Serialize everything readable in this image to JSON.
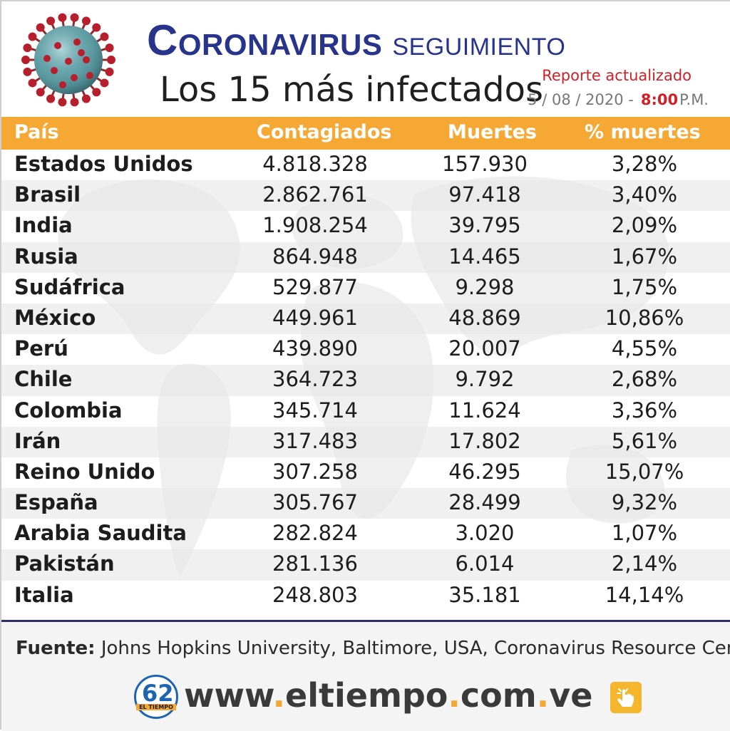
{
  "header": {
    "title_word1": "Coronavirus",
    "title_word2": "seguimiento",
    "subtitle": "Los 15 más infectados",
    "report_label": "Reporte actualizado",
    "date": "5 / 08 / 2020 -",
    "time": "8:00",
    "ampm": "P.M."
  },
  "table": {
    "headers": [
      "País",
      "Contagiados",
      "Muertes",
      "% muertes"
    ],
    "rows": [
      {
        "country": "Estados Unidos",
        "cases": "4.818.328",
        "deaths": "157.930",
        "pct": "3,28%"
      },
      {
        "country": "Brasil",
        "cases": "2.862.761",
        "deaths": "97.418",
        "pct": "3,40%"
      },
      {
        "country": "India",
        "cases": "1.908.254",
        "deaths": "39.795",
        "pct": "2,09%"
      },
      {
        "country": "Rusia",
        "cases": "864.948",
        "deaths": "14.465",
        "pct": "1,67%"
      },
      {
        "country": "Sudáfrica",
        "cases": "529.877",
        "deaths": "9.298",
        "pct": "1,75%"
      },
      {
        "country": "México",
        "cases": "449.961",
        "deaths": "48.869",
        "pct": "10,86%"
      },
      {
        "country": "Perú",
        "cases": "439.890",
        "deaths": "20.007",
        "pct": "4,55%"
      },
      {
        "country": "Chile",
        "cases": "364.723",
        "deaths": "9.792",
        "pct": "2,68%"
      },
      {
        "country": "Colombia",
        "cases": "345.714",
        "deaths": "11.624",
        "pct": "3,36%"
      },
      {
        "country": "Irán",
        "cases": "317.483",
        "deaths": "17.802",
        "pct": "5,61%"
      },
      {
        "country": "Reino Unido",
        "cases": "307.258",
        "deaths": "46.295",
        "pct": "15,07%"
      },
      {
        "country": "España",
        "cases": "305.767",
        "deaths": "28.499",
        "pct": "9,32%"
      },
      {
        "country": "Arabia Saudita",
        "cases": "282.824",
        "deaths": "3.020",
        "pct": "1,07%"
      },
      {
        "country": "Pakistán",
        "cases": "281.136",
        "deaths": "6.014",
        "pct": "2,14%"
      },
      {
        "country": "Italia",
        "cases": "248.803",
        "deaths": "35.181",
        "pct": "14,14%"
      }
    ]
  },
  "footer": {
    "source_label": "Fuente:",
    "source_text": "Johns Hopkins University, Baltimore, USA, Coronavirus Resource Center",
    "logo_number": "62",
    "logo_text": "EL TIEMPO",
    "url_parts": [
      "www",
      ".",
      "eltiempo",
      ".",
      "com",
      ".",
      "ve"
    ]
  },
  "colors": {
    "header_bar": "#f5a833",
    "title_blue": "#28348c",
    "accent_red": "#d21f26",
    "divider": "#2d2f66"
  },
  "icons": [
    "coronavirus-image",
    "click-hand-icon",
    "eltiempo-logo"
  ]
}
